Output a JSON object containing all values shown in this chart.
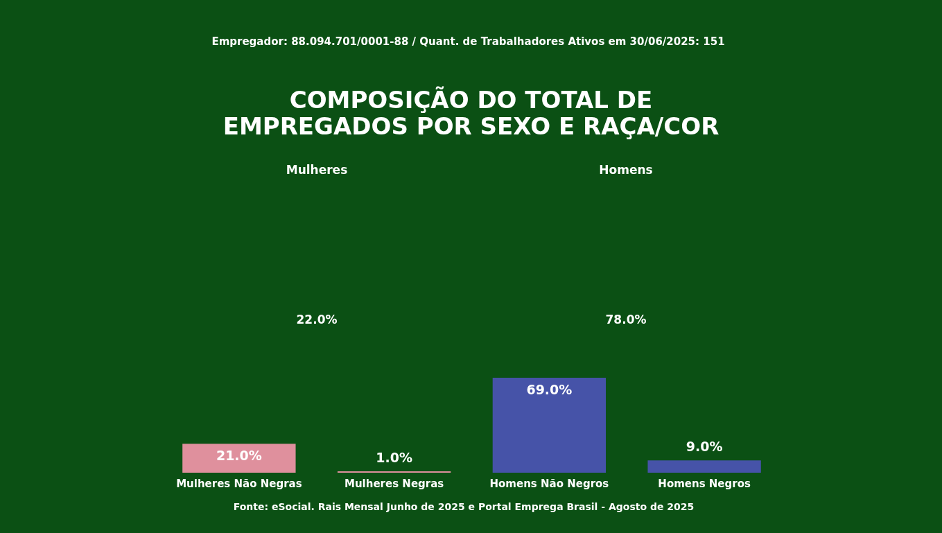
{
  "chart_data": [
    {
      "type": "other",
      "title": "COMPOSIÇÃO DO TOTAL DE\nEMPREGADOS POR SEXO E RAÇA/COR",
      "subtitle": "Empregador: 88.094.701/0001-88 / Quant. de Trabalhadores Ativos em 30/06/2025: 151",
      "categories": [
        "Mulheres",
        "Homens"
      ],
      "values": [
        22.0,
        78.0
      ],
      "value_labels": [
        "22.0%",
        "78.0%"
      ]
    },
    {
      "type": "bar",
      "categories": [
        "Mulheres Não Negras",
        "Mulheres Negras",
        "Homens Não Negros",
        "Homens Negros"
      ],
      "values": [
        21.0,
        1.0,
        69.0,
        9.0
      ],
      "colors": [
        "#df909d",
        "#df909d",
        "#4653a8",
        "#4653a8"
      ],
      "value_labels": [
        "21.0%",
        "1.0%",
        "69.0%",
        "9.0%"
      ],
      "annotations": [
        "Fonte: eSocial. Rais Mensal Junho de 2025 e Portal Emprega Brasil - Agosto de 2025"
      ]
    }
  ]
}
